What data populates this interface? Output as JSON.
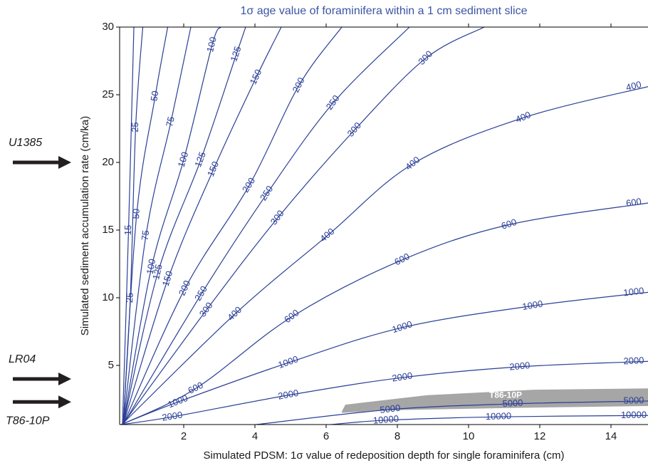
{
  "chart_data": {
    "type": "contour",
    "title": "1σ age value of foraminifera within a 1 cm sediment slice",
    "x_label": "Simulated PDSM: 1σ value of redeposition depth for single foraminifera (cm)",
    "y_label": "Simulated sediment accumulation rate (cm/ka)",
    "xlim": [
      0.2,
      15.04
    ],
    "ylim": [
      0.63,
      30
    ],
    "xticks": [
      2,
      4,
      6,
      8,
      10,
      12,
      14
    ],
    "yticks": [
      5,
      10,
      15,
      20,
      25,
      30
    ],
    "color": "#2b3f96",
    "series": [
      {
        "name": "15",
        "x": [
          0.28,
          0.45,
          0.6
        ],
        "y": [
          0.63,
          15,
          30
        ]
      },
      {
        "name": "25",
        "x": [
          0.3,
          0.5,
          0.65,
          0.85
        ],
        "y": [
          0.63,
          10,
          22.6,
          30
        ]
      },
      {
        "name": "50",
        "x": [
          0.3,
          0.68,
          1.2,
          1.55
        ],
        "y": [
          0.63,
          16.2,
          24.9,
          30
        ]
      },
      {
        "name": "75",
        "x": [
          0.3,
          0.94,
          1.64,
          2.2
        ],
        "y": [
          0.63,
          14.6,
          23,
          30
        ]
      },
      {
        "name": "100",
        "x": [
          0.3,
          1.1,
          2.0,
          2.8,
          3.04
        ],
        "y": [
          0.63,
          12.3,
          20.2,
          28.7,
          30
        ]
      },
      {
        "name": "125",
        "x": [
          0.3,
          1.28,
          2.48,
          3.48,
          3.74
        ],
        "y": [
          0.63,
          11.9,
          20.2,
          28,
          30
        ]
      },
      {
        "name": "150",
        "x": [
          0.3,
          1.56,
          2.84,
          4.04,
          4.74
        ],
        "y": [
          0.63,
          11.4,
          19.5,
          26.3,
          30
        ]
      },
      {
        "name": "200",
        "x": [
          0.3,
          2.04,
          3.84,
          5.24,
          6.44
        ],
        "y": [
          0.63,
          10.7,
          18.3,
          25.7,
          30
        ]
      },
      {
        "name": "250",
        "x": [
          0.3,
          2.5,
          4.34,
          6.2,
          8.34
        ],
        "y": [
          0.63,
          10.3,
          17.7,
          24.4,
          30
        ]
      },
      {
        "name": "300",
        "x": [
          0.28,
          2.64,
          4.64,
          6.8,
          8.8,
          10.44
        ],
        "y": [
          0.63,
          9.1,
          15.9,
          22.4,
          27.7,
          30
        ]
      },
      {
        "name": "400",
        "x": [
          0.26,
          3.44,
          6.04,
          8.44,
          11.54,
          15.04
        ],
        "y": [
          0.63,
          8.8,
          14.6,
          19.9,
          23.3,
          25.6
        ]
      },
      {
        "name": "600",
        "x": [
          0.25,
          2.34,
          5.04,
          8.14,
          11.14,
          15.04
        ],
        "y": [
          0.63,
          3.3,
          8.6,
          12.8,
          15.4,
          17
        ]
      },
      {
        "name": "1000",
        "x": [
          0.24,
          1.84,
          4.94,
          8.14,
          11.8,
          15.04
        ],
        "y": [
          0.63,
          2.3,
          5.2,
          7.8,
          9.4,
          10.4
        ]
      },
      {
        "name": "2000",
        "x": [
          0.24,
          1.68,
          4.94,
          8.14,
          11.44,
          15.04
        ],
        "y": [
          0.63,
          1.2,
          2.8,
          4.1,
          4.9,
          5.3
        ]
      },
      {
        "name": "5000",
        "x": [
          4.04,
          7.8,
          11.24,
          15.04
        ],
        "y": [
          0.63,
          1.74,
          2.16,
          2.37
        ]
      },
      {
        "name": "10000",
        "x": [
          6.14,
          7.68,
          10.84,
          15.04
        ],
        "y": [
          0.63,
          0.95,
          1.2,
          1.3
        ]
      }
    ],
    "region": {
      "name": "T86-10P",
      "color": "#a6a6a6",
      "x": [
        6.44,
        6.54,
        8.84,
        11.84,
        15.04,
        15.04,
        11.0,
        8.0,
        6.44
      ],
      "y": [
        1.6,
        2.1,
        2.8,
        3.2,
        3.3,
        2.0,
        1.85,
        1.7,
        1.5
      ]
    },
    "annotations": [
      {
        "text": "U1385",
        "y": 20
      },
      {
        "text": "LR04",
        "y": 4
      },
      {
        "text": "T86-10P",
        "y": 2.3
      }
    ]
  }
}
